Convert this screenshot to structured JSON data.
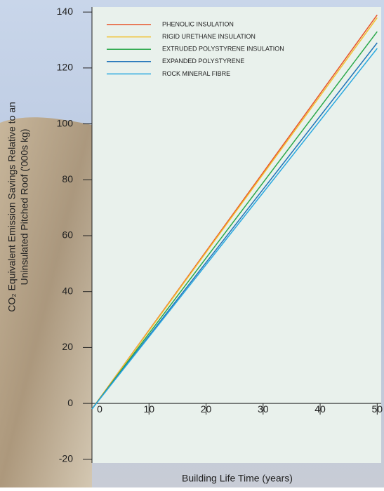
{
  "chart_data": {
    "type": "line",
    "x_label": "Building Life Time (years)",
    "y_label": [
      "CO₂ Equivalent Emission Savings Relative to an",
      "Uninsulated Pitched Roof ('000s kg)"
    ],
    "x": [
      0,
      50
    ],
    "series": [
      {
        "name": "PHENOLIC INSULATION",
        "color": "#e8542a",
        "values": [
          -2,
          139
        ]
      },
      {
        "name": "RIGID URETHANE INSULATION",
        "color": "#f2c12e",
        "values": [
          -2,
          138
        ]
      },
      {
        "name": "EXTRUDED POLYSTYRENE INSULATION",
        "color": "#2aa84a",
        "values": [
          -2,
          133
        ]
      },
      {
        "name": "EXPANDED POLYSTYRENE",
        "color": "#1f73b8",
        "values": [
          -2,
          129
        ]
      },
      {
        "name": "ROCK MINERAL FIBRE",
        "color": "#29a8e0",
        "values": [
          -2,
          127
        ]
      }
    ],
    "xlim": [
      0,
      50.7
    ],
    "xticks": [
      0,
      10,
      20,
      30,
      40,
      50
    ],
    "ylim": [
      -21.3,
      141.8
    ],
    "yticks": [
      -20,
      0,
      20,
      40,
      60,
      80,
      100,
      120,
      140
    ],
    "legend": "top-left"
  }
}
